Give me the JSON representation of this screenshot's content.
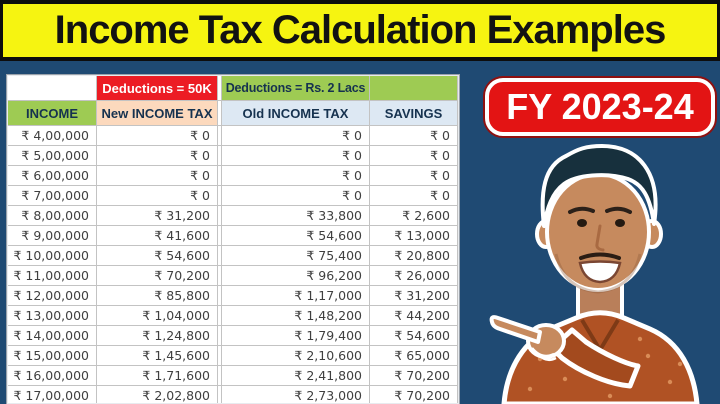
{
  "title": "Income Tax Calculation Examples",
  "badge": {
    "label": "FY 2023-24"
  },
  "colors": {
    "banner-yellow": "#f6f411",
    "banner-border": "#0d0d0d",
    "banner-text": "#121212",
    "bg-blue": "#1f4a73",
    "badge-red": "#e31414",
    "badge-rim": "#8f1010",
    "header-red": "#ec1c24",
    "header-green": "#9ecb53",
    "header-peach": "#fcd9bd",
    "header-blue": "#dde8f3",
    "header-text": "#16324f",
    "cell-text": "#3f3f3f",
    "grid-line": "#c3c3c3"
  },
  "table": {
    "deduction_headers": {
      "new": "Deductions = 50K",
      "old": "Deductions = Rs. 2 Lacs"
    },
    "columns": [
      "INCOME",
      "New INCOME TAX",
      "Old INCOME TAX",
      "SAVINGS"
    ],
    "rows": [
      [
        "₹ 4,00,000",
        "₹ 0",
        "₹ 0",
        "₹ 0"
      ],
      [
        "₹ 5,00,000",
        "₹ 0",
        "₹ 0",
        "₹ 0"
      ],
      [
        "₹ 6,00,000",
        "₹ 0",
        "₹ 0",
        "₹ 0"
      ],
      [
        "₹ 7,00,000",
        "₹ 0",
        "₹ 0",
        "₹ 0"
      ],
      [
        "₹ 8,00,000",
        "₹ 31,200",
        "₹ 33,800",
        "₹ 2,600"
      ],
      [
        "₹ 9,00,000",
        "₹ 41,600",
        "₹ 54,600",
        "₹ 13,000"
      ],
      [
        "₹ 10,00,000",
        "₹ 54,600",
        "₹ 75,400",
        "₹ 20,800"
      ],
      [
        "₹ 11,00,000",
        "₹ 70,200",
        "₹ 96,200",
        "₹ 26,000"
      ],
      [
        "₹ 12,00,000",
        "₹ 85,800",
        "₹ 1,17,000",
        "₹ 31,200"
      ],
      [
        "₹ 13,00,000",
        "₹ 1,04,000",
        "₹ 1,48,200",
        "₹ 44,200"
      ],
      [
        "₹ 14,00,000",
        "₹ 1,24,800",
        "₹ 1,79,400",
        "₹ 54,600"
      ],
      [
        "₹ 15,00,000",
        "₹ 1,45,600",
        "₹ 2,10,600",
        "₹ 65,000"
      ],
      [
        "₹ 16,00,000",
        "₹ 1,71,600",
        "₹ 2,41,800",
        "₹ 70,200"
      ],
      [
        "₹ 17,00,000",
        "₹ 2,02,800",
        "₹ 2,73,000",
        "₹ 70,200"
      ]
    ]
  }
}
